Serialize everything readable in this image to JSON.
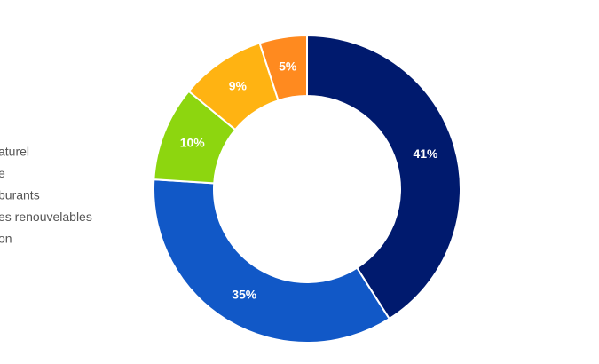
{
  "chart_data": {
    "type": "donut",
    "categories": [
      "aturel",
      "e",
      "burants",
      "es renouvelables",
      "on"
    ],
    "values": [
      41,
      35,
      10,
      9,
      5
    ],
    "value_labels": [
      "41%",
      "35%",
      "10%",
      "9%",
      "5%"
    ],
    "colors": [
      "#001a6e",
      "#1158c7",
      "#8dd60f",
      "#ffb312",
      "#ff8a1f"
    ]
  }
}
